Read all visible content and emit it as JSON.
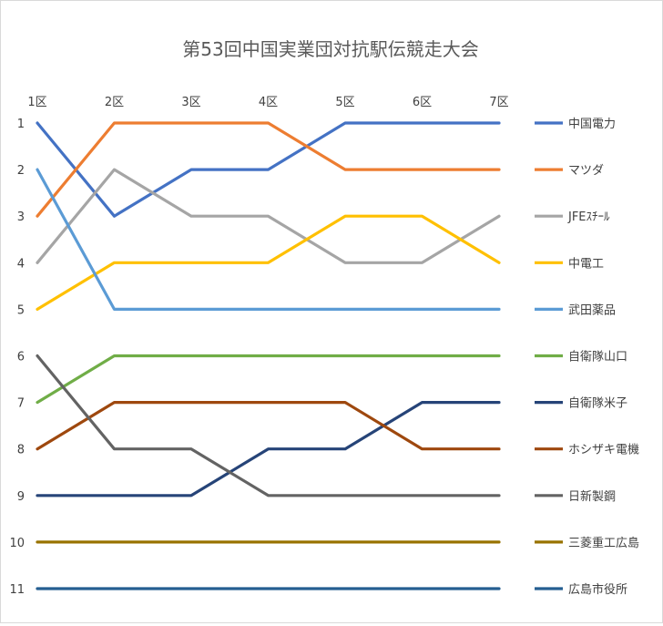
{
  "chart_data": {
    "type": "line",
    "title": "第53回中国実業団対抗駅伝競走大会",
    "categories": [
      "1区",
      "2区",
      "3区",
      "4区",
      "5区",
      "6区",
      "7区"
    ],
    "y_ticks": [
      "1",
      "2",
      "3",
      "4",
      "5",
      "6",
      "7",
      "8",
      "9",
      "10",
      "11"
    ],
    "ylim": [
      1,
      11
    ],
    "y_reversed": true,
    "x_axis_position": "top",
    "grid": false,
    "legend_position": "right",
    "series": [
      {
        "name": "中国電力",
        "values": [
          1,
          3,
          2,
          2,
          1,
          1,
          1
        ],
        "color": "#4472C4"
      },
      {
        "name": "マツダ",
        "values": [
          3,
          1,
          1,
          1,
          2,
          2,
          2
        ],
        "color": "#ED7D31"
      },
      {
        "name": "JFEｽﾁｰﾙ",
        "values": [
          4,
          2,
          3,
          3,
          4,
          4,
          3
        ],
        "color": "#A5A5A5"
      },
      {
        "name": "中電工",
        "values": [
          5,
          4,
          4,
          4,
          3,
          3,
          4
        ],
        "color": "#FFC000"
      },
      {
        "name": "武田薬品",
        "values": [
          2,
          5,
          5,
          5,
          5,
          5,
          5
        ],
        "color": "#5B9BD5"
      },
      {
        "name": "自衛隊山口",
        "values": [
          7,
          6,
          6,
          6,
          6,
          6,
          6
        ],
        "color": "#70AD47"
      },
      {
        "name": "自衛隊米子",
        "values": [
          9,
          9,
          9,
          8,
          8,
          7,
          7
        ],
        "color": "#264478"
      },
      {
        "name": "ホシザキ電機",
        "values": [
          8,
          7,
          7,
          7,
          7,
          8,
          8
        ],
        "color": "#9E480E"
      },
      {
        "name": "日新製鋼",
        "values": [
          6,
          8,
          8,
          9,
          9,
          9,
          9
        ],
        "color": "#636363"
      },
      {
        "name": "三菱重工広島",
        "values": [
          10,
          10,
          10,
          10,
          10,
          10,
          10
        ],
        "color": "#997300"
      },
      {
        "name": "広島市役所",
        "values": [
          11,
          11,
          11,
          11,
          11,
          11,
          11
        ],
        "color": "#255E91"
      }
    ]
  }
}
